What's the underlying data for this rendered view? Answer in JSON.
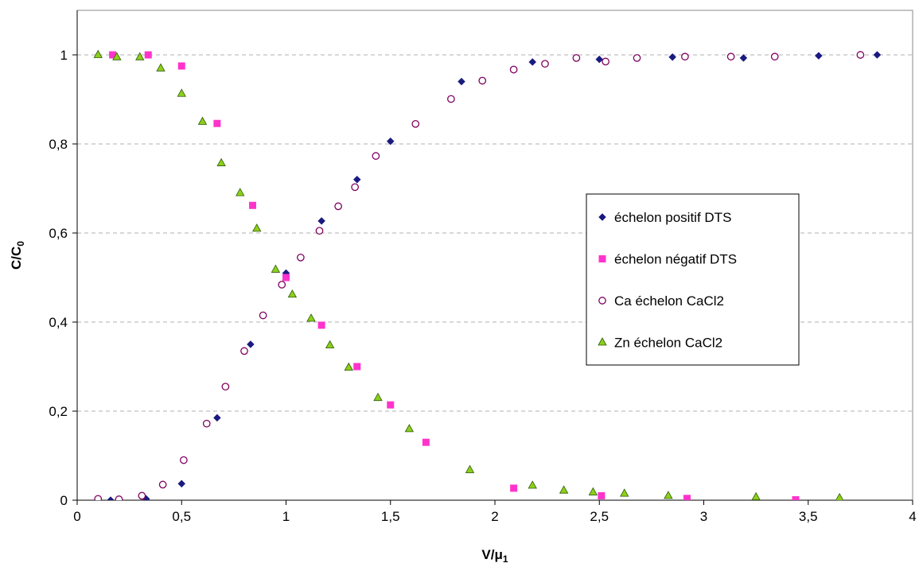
{
  "chart_data": {
    "type": "scatter",
    "xlabel": "V/μ",
    "xlabel_sub": "1",
    "ylabel": "C/C",
    "ylabel_sub": "0",
    "xlim": [
      0,
      4
    ],
    "ylim": [
      0,
      1.1
    ],
    "xticks": [
      0,
      0.5,
      1,
      1.5,
      2,
      2.5,
      3,
      3.5,
      4
    ],
    "xtick_labels": [
      "0",
      "0,5",
      "1",
      "1,5",
      "2",
      "2,5",
      "3",
      "3,5",
      "4"
    ],
    "yticks": [
      0,
      0.2,
      0.4,
      0.6,
      0.8,
      1
    ],
    "ytick_labels": [
      "0",
      "0,2",
      "0,4",
      "0,6",
      "0,8",
      "1"
    ],
    "grid": "horizontal dashed",
    "legend_position": "right-center",
    "series": [
      {
        "name": "échelon positif DTS",
        "marker": "diamond",
        "color": "#1a1a80",
        "x": [
          0.16,
          0.33,
          0.5,
          0.67,
          0.83,
          1.0,
          1.17,
          1.34,
          1.5,
          1.84,
          2.18,
          2.5,
          2.85,
          3.19,
          3.55,
          3.83
        ],
        "y": [
          0.0,
          0.003,
          0.037,
          0.185,
          0.35,
          0.51,
          0.627,
          0.72,
          0.806,
          0.94,
          0.984,
          0.99,
          0.995,
          0.993,
          0.998,
          1.0
        ]
      },
      {
        "name": "échelon négatif DTS",
        "marker": "square",
        "color": "#ff33cc",
        "x": [
          0.17,
          0.34,
          0.5,
          0.67,
          0.84,
          1.0,
          1.17,
          1.34,
          1.5,
          1.67,
          2.09,
          2.51,
          2.92,
          3.44
        ],
        "y": [
          1.0,
          1.0,
          0.975,
          0.846,
          0.662,
          0.5,
          0.393,
          0.3,
          0.214,
          0.13,
          0.027,
          0.01,
          0.004,
          0.001
        ]
      },
      {
        "name": "Ca échelon CaCl2",
        "marker": "circle-open",
        "color": "#800060",
        "x": [
          0.1,
          0.2,
          0.31,
          0.41,
          0.51,
          0.62,
          0.71,
          0.8,
          0.89,
          0.98,
          1.07,
          1.16,
          1.25,
          1.33,
          1.43,
          1.62,
          1.79,
          1.94,
          2.09,
          2.24,
          2.39,
          2.53,
          2.68,
          2.91,
          3.13,
          3.34,
          3.75
        ],
        "y": [
          0.003,
          0.002,
          0.01,
          0.035,
          0.09,
          0.172,
          0.255,
          0.335,
          0.415,
          0.484,
          0.545,
          0.605,
          0.66,
          0.703,
          0.773,
          0.845,
          0.901,
          0.942,
          0.967,
          0.98,
          0.993,
          0.985,
          0.993,
          0.996,
          0.996,
          0.996,
          1.0
        ]
      },
      {
        "name": "Zn échelon CaCl2",
        "marker": "triangle",
        "color": "#8ccf1a",
        "x": [
          0.1,
          0.19,
          0.3,
          0.4,
          0.5,
          0.6,
          0.69,
          0.78,
          0.86,
          0.95,
          1.03,
          1.12,
          1.21,
          1.3,
          1.44,
          1.59,
          1.88,
          2.18,
          2.33,
          2.47,
          2.62,
          2.83,
          3.25,
          3.65
        ],
        "y": [
          1.0,
          0.995,
          0.995,
          0.97,
          0.913,
          0.85,
          0.757,
          0.69,
          0.61,
          0.518,
          0.462,
          0.408,
          0.348,
          0.298,
          0.23,
          0.16,
          0.068,
          0.033,
          0.022,
          0.018,
          0.015,
          0.01,
          0.007,
          0.005
        ]
      }
    ]
  }
}
